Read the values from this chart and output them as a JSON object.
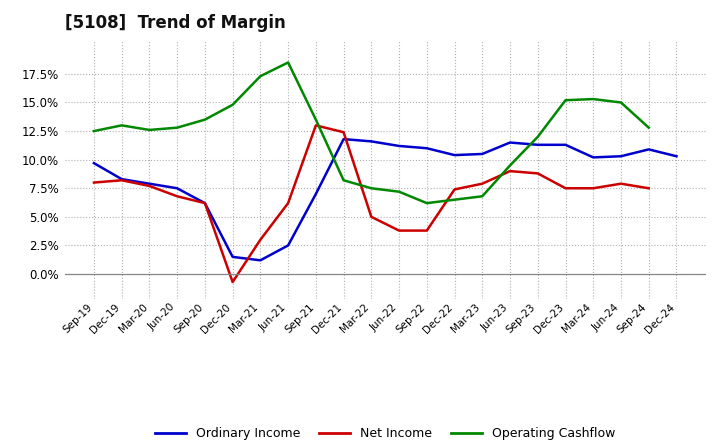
{
  "title": "[5108]  Trend of Margin",
  "x_labels": [
    "Sep-19",
    "Dec-19",
    "Mar-20",
    "Jun-20",
    "Sep-20",
    "Dec-20",
    "Mar-21",
    "Jun-21",
    "Sep-21",
    "Dec-21",
    "Mar-22",
    "Jun-22",
    "Sep-22",
    "Dec-22",
    "Mar-23",
    "Jun-23",
    "Sep-23",
    "Dec-23",
    "Mar-24",
    "Jun-24",
    "Sep-24",
    "Dec-24"
  ],
  "ordinary_income": [
    0.097,
    0.083,
    0.079,
    0.075,
    0.062,
    0.015,
    0.012,
    0.025,
    0.07,
    0.118,
    0.116,
    0.112,
    0.11,
    0.104,
    0.105,
    0.115,
    0.113,
    0.113,
    0.102,
    0.103,
    0.109,
    0.103
  ],
  "net_income": [
    0.08,
    0.082,
    0.077,
    0.068,
    0.062,
    -0.007,
    0.03,
    0.062,
    0.13,
    0.124,
    0.05,
    0.038,
    0.038,
    0.074,
    0.079,
    0.09,
    0.088,
    0.075,
    0.075,
    0.079,
    0.075,
    null
  ],
  "operating_cashflow": [
    0.125,
    0.13,
    0.126,
    0.128,
    0.135,
    0.148,
    0.173,
    0.185,
    0.135,
    0.082,
    0.075,
    0.072,
    0.062,
    0.065,
    0.068,
    0.095,
    0.12,
    0.152,
    0.153,
    0.15,
    0.128,
    null
  ],
  "ylim": [
    -0.022,
    0.205
  ],
  "yticks": [
    0.0,
    0.025,
    0.05,
    0.075,
    0.1,
    0.125,
    0.15,
    0.175
  ],
  "ordinary_color": "#0000cc",
  "net_color": "#cc0000",
  "cashflow_color": "#008800",
  "bg_color": "#ffffff",
  "plot_bg": "#ffffff",
  "grid_color": "#b0b0b0",
  "title_fontsize": 12,
  "legend_labels": [
    "Ordinary Income",
    "Net Income",
    "Operating Cashflow"
  ]
}
